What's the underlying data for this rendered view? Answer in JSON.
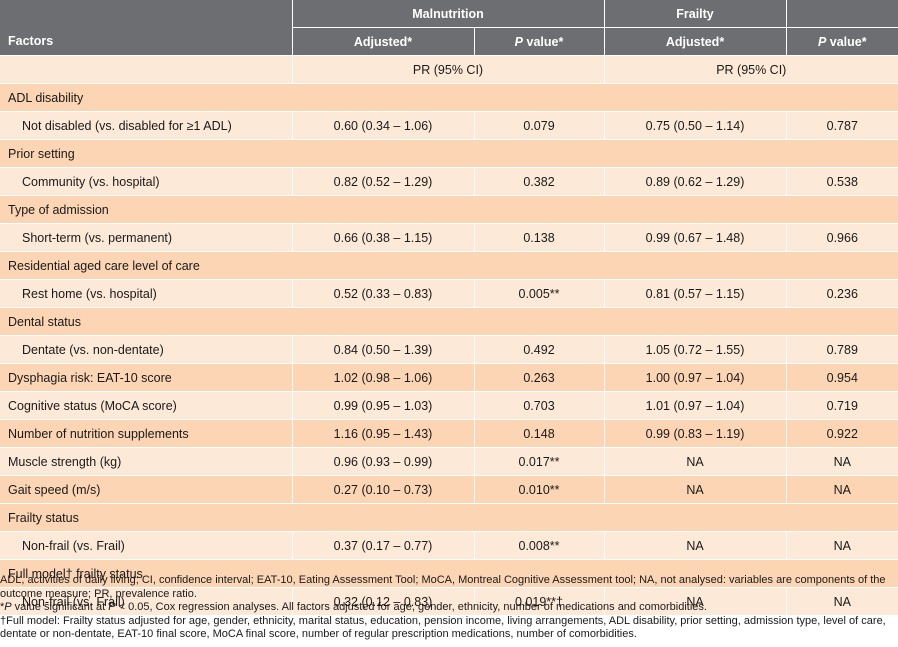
{
  "header": {
    "factors": "Factors",
    "groups": [
      "Malnutrition",
      "Frailty"
    ],
    "columns": [
      "Adjusted*",
      "P value*",
      "Adjusted*",
      "P value*"
    ],
    "measure_label": "PR (95% CI)"
  },
  "rows": [
    {
      "type": "section",
      "label": "ADL disability"
    },
    {
      "type": "item",
      "label": "Not disabled (vs. disabled for ≥1 ADL)",
      "mal_pr": "0.60 (0.34 – 1.06)",
      "mal_p": "0.079",
      "fra_pr": "0.75 (0.50 – 1.14)",
      "fra_p": "0.787"
    },
    {
      "type": "section",
      "label": "Prior setting"
    },
    {
      "type": "item",
      "label": "Community (vs. hospital)",
      "mal_pr": "0.82 (0.52 – 1.29)",
      "mal_p": "0.382",
      "fra_pr": "0.89 (0.62 – 1.29)",
      "fra_p": "0.538"
    },
    {
      "type": "section",
      "label": "Type of admission"
    },
    {
      "type": "item",
      "label": "Short-term (vs. permanent)",
      "mal_pr": "0.66 (0.38 – 1.15)",
      "mal_p": "0.138",
      "fra_pr": "0.99 (0.67 – 1.48)",
      "fra_p": "0.966"
    },
    {
      "type": "section",
      "label": "Residential aged care level of care"
    },
    {
      "type": "item",
      "label": "Rest home (vs. hospital)",
      "mal_pr": "0.52 (0.33 – 0.83)",
      "mal_p": "0.005**",
      "fra_pr": "0.81 (0.57 – 1.15)",
      "fra_p": "0.236"
    },
    {
      "type": "section",
      "label": "Dental status"
    },
    {
      "type": "item",
      "label": "Dentate (vs. non-dentate)",
      "mal_pr": "0.84 (0.50 – 1.39)",
      "mal_p": "0.492",
      "fra_pr": "1.05 (0.72 – 1.55)",
      "fra_p": "0.789"
    },
    {
      "type": "plain",
      "label": "Dysphagia risk: EAT-10 score",
      "mal_pr": "1.02 (0.98 – 1.06)",
      "mal_p": "0.263",
      "fra_pr": "1.00 (0.97 – 1.04)",
      "fra_p": "0.954"
    },
    {
      "type": "plain",
      "label": "Cognitive status (MoCA score)",
      "mal_pr": "0.99 (0.95 – 1.03)",
      "mal_p": "0.703",
      "fra_pr": "1.01 (0.97 – 1.04)",
      "fra_p": "0.719"
    },
    {
      "type": "plain",
      "label": "Number of nutrition supplements",
      "mal_pr": "1.16 (0.95 – 1.43)",
      "mal_p": "0.148",
      "fra_pr": "0.99 (0.83 – 1.19)",
      "fra_p": "0.922"
    },
    {
      "type": "plain",
      "label": "Muscle strength (kg)",
      "mal_pr": "0.96 (0.93 – 0.99)",
      "mal_p": "0.017**",
      "fra_pr": "NA",
      "fra_p": "NA"
    },
    {
      "type": "plain",
      "label": "Gait speed (m/s)",
      "mal_pr": "0.27 (0.10 – 0.73)",
      "mal_p": "0.010**",
      "fra_pr": "NA",
      "fra_p": "NA"
    },
    {
      "type": "section",
      "label": "Frailty status"
    },
    {
      "type": "item",
      "label": "Non-frail (vs. Frail)",
      "mal_pr": "0.37 (0.17 – 0.77)",
      "mal_p": "0.008**",
      "fra_pr": "NA",
      "fra_p": "NA"
    },
    {
      "type": "section",
      "label": "Full model† frailty status"
    },
    {
      "type": "item",
      "label": "Non-frail (vs. Frail)",
      "mal_pr": "0.32 (0.12 – 0.83)",
      "mal_p": "0.019**†",
      "fra_pr": "NA",
      "fra_p": "NA"
    }
  ],
  "footnotes": {
    "abbrev": "ADL, activities of daily living; CI, confidence interval; EAT-10, Eating Assessment Tool; MoCA, Montreal Cognitive Assessment tool; NA, not analysed: variables are components of the outcome measure; PR, prevalence ratio.",
    "star_lead": "*",
    "star_p": "P",
    "star_mid": " value significant at ",
    "star_p2": "P",
    "star_rest": " < 0.05, Cox regression analyses. All factors adjusted for age, gender, ethnicity, number of medications and comorbidities.",
    "dagger": "†Full model: Frailty status adjusted for age, gender, ethnicity, marital status, education, pension income, living arrangements, ADL disability, prior setting, admission type, level of care, dentate or non-dentate, EAT-10 final score, MoCA final score, number of regular prescription medications, number of comorbidities."
  }
}
